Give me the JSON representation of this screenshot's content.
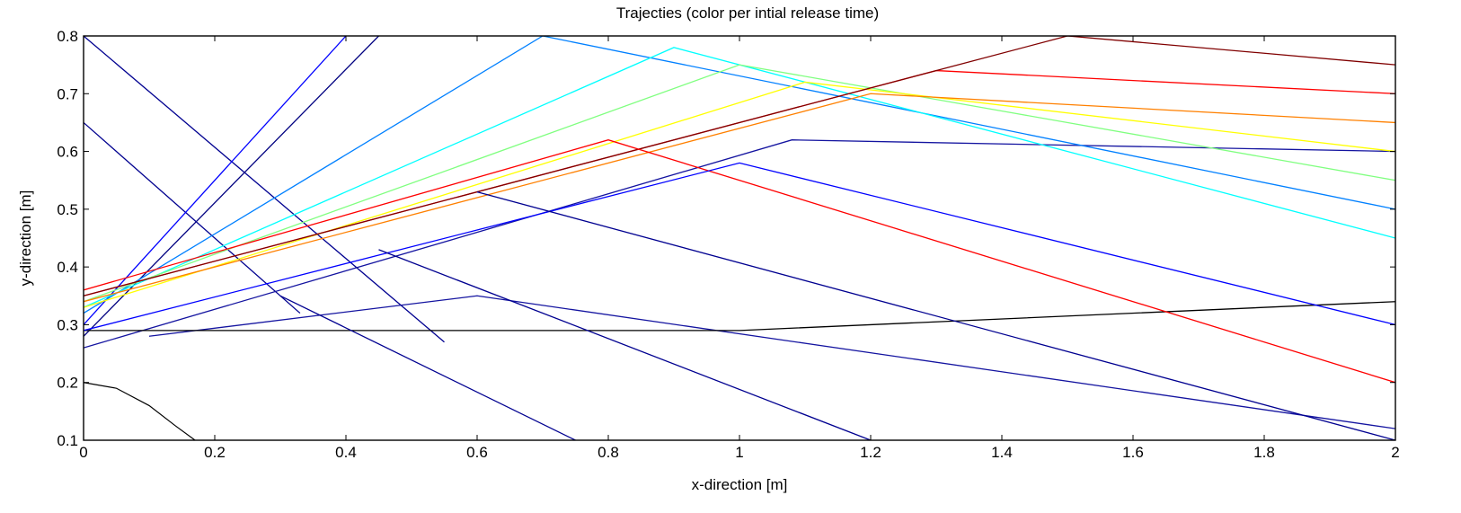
{
  "chart_data": {
    "type": "line",
    "title": "Trajecties (color per intial release time)",
    "xlabel": "x-direction [m]",
    "ylabel": "y-direction [m]",
    "xlim": [
      0,
      2
    ],
    "ylim": [
      0.1,
      0.8
    ],
    "xticks": [
      0,
      0.2,
      0.4,
      0.6,
      0.8,
      1,
      1.2,
      1.4,
      1.6,
      1.8,
      2
    ],
    "xtick_labels": [
      "0",
      "0.2",
      "0.4",
      "0.6",
      "0.8",
      "1",
      "1.2",
      "1.4",
      "1.6",
      "1.8",
      "2"
    ],
    "yticks": [
      0.1,
      0.2,
      0.3,
      0.4,
      0.5,
      0.6,
      0.7,
      0.8
    ],
    "ytick_labels": [
      "0.1",
      "0.2",
      "0.3",
      "0.4",
      "0.5",
      "0.6",
      "0.7",
      "0.8"
    ],
    "grid": false,
    "legend": "none",
    "colormap": [
      "#00008f",
      "#0000ff",
      "#0080ff",
      "#00ffff",
      "#80ff80",
      "#ffff00",
      "#ff8000",
      "#ff0000",
      "#800000"
    ],
    "boundary_curve": {
      "x": [
        0,
        0.05,
        0.1,
        0.14,
        0.17
      ],
      "y": [
        0.2,
        0.19,
        0.16,
        0.125,
        0.1
      ],
      "color": "#000000"
    },
    "series": [
      {
        "color": "#000080",
        "x": [
          0,
          0.45
        ],
        "y": [
          0.28,
          0.8
        ]
      },
      {
        "color": "#000090",
        "x": [
          0,
          0.55
        ],
        "y": [
          0.8,
          0.27
        ]
      },
      {
        "color": "#00008f",
        "x": [
          0,
          0.33
        ],
        "y": [
          0.65,
          0.32
        ]
      },
      {
        "color": "#1414a0",
        "x": [
          0,
          1.08,
          2
        ],
        "y": [
          0.26,
          0.62,
          0.6
        ]
      },
      {
        "color": "#1414a0",
        "x": [
          0.1,
          0.6,
          2
        ],
        "y": [
          0.28,
          0.35,
          0.12
        ]
      },
      {
        "color": "#000000",
        "x": [
          0,
          1,
          2
        ],
        "y": [
          0.29,
          0.29,
          0.34
        ]
      },
      {
        "color": "#0000ff",
        "x": [
          0,
          0.4
        ],
        "y": [
          0.3,
          0.8
        ]
      },
      {
        "color": "#0080ff",
        "x": [
          0,
          0.7,
          2
        ],
        "y": [
          0.32,
          0.8,
          0.5
        ]
      },
      {
        "color": "#00ffff",
        "x": [
          0,
          0.9,
          2
        ],
        "y": [
          0.33,
          0.78,
          0.45
        ]
      },
      {
        "color": "#80ff80",
        "x": [
          0,
          1.0,
          2
        ],
        "y": [
          0.34,
          0.75,
          0.55
        ]
      },
      {
        "color": "#ffff00",
        "x": [
          0,
          1.1,
          2
        ],
        "y": [
          0.33,
          0.72,
          0.6
        ]
      },
      {
        "color": "#ff8000",
        "x": [
          0,
          1.2,
          2
        ],
        "y": [
          0.34,
          0.7,
          0.65
        ]
      },
      {
        "color": "#ff0000",
        "x": [
          0,
          1.3,
          2
        ],
        "y": [
          0.35,
          0.74,
          0.7
        ]
      },
      {
        "color": "#800000",
        "x": [
          0,
          1.5,
          2
        ],
        "y": [
          0.35,
          0.8,
          0.75
        ]
      },
      {
        "color": "#ff0000",
        "x": [
          0,
          0.8,
          2
        ],
        "y": [
          0.36,
          0.62,
          0.2
        ]
      },
      {
        "color": "#0000ff",
        "x": [
          0,
          1.0,
          2
        ],
        "y": [
          0.29,
          0.58,
          0.3
        ]
      },
      {
        "color": "#000090",
        "x": [
          0.6,
          2
        ],
        "y": [
          0.53,
          0.1
        ]
      },
      {
        "color": "#000090",
        "x": [
          0.45,
          1.2
        ],
        "y": [
          0.43,
          0.1
        ]
      },
      {
        "color": "#000090",
        "x": [
          0.3,
          0.75
        ],
        "y": [
          0.35,
          0.1
        ]
      }
    ]
  }
}
